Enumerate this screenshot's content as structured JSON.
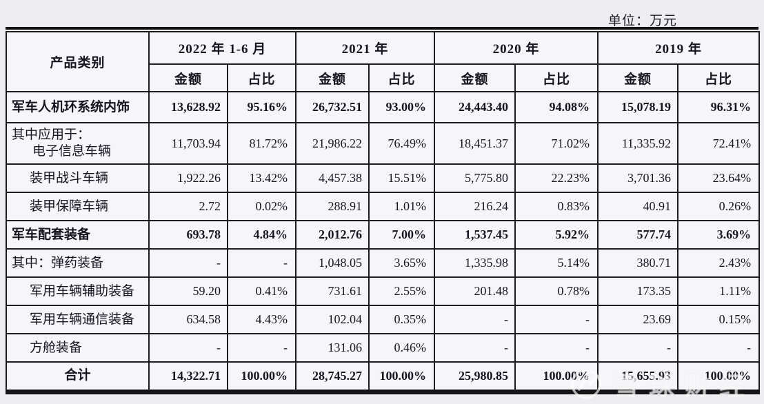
{
  "meta": {
    "unit_label": "单位：万元"
  },
  "table": {
    "category_header": "产品类别",
    "year_groups": [
      "2022 年 1-6 月",
      "2021 年",
      "2020 年",
      "2019 年"
    ],
    "amount_header": "金额",
    "ratio_header": "占比",
    "rows": [
      {
        "label": "军车人机环系统内饰",
        "bold": true,
        "indent": 0,
        "style": "main",
        "values": [
          "13,628.92",
          "95.16%",
          "26,732.51",
          "93.00%",
          "24,443.40",
          "94.08%",
          "15,078.19",
          "96.31%"
        ]
      },
      {
        "label": "其中应用于：",
        "label2": "电子信息车辆",
        "bold": false,
        "indent": 0,
        "style": "tall",
        "values": [
          "11,703.94",
          "81.72%",
          "21,986.22",
          "76.49%",
          "18,451.37",
          "71.02%",
          "11,335.92",
          "72.41%"
        ]
      },
      {
        "label": "装甲战斗车辆",
        "bold": false,
        "indent": 1,
        "style": "",
        "values": [
          "1,922.26",
          "13.42%",
          "4,457.38",
          "15.51%",
          "5,775.80",
          "22.23%",
          "3,701.36",
          "23.64%"
        ]
      },
      {
        "label": "装甲保障车辆",
        "bold": false,
        "indent": 1,
        "style": "",
        "values": [
          "2.72",
          "0.02%",
          "288.91",
          "1.01%",
          "216.24",
          "0.83%",
          "40.91",
          "0.26%"
        ]
      },
      {
        "label": "军车配套装备",
        "bold": true,
        "indent": 0,
        "style": "",
        "values": [
          "693.78",
          "4.84%",
          "2,012.76",
          "7.00%",
          "1,537.45",
          "5.92%",
          "577.74",
          "3.69%"
        ]
      },
      {
        "label": "其中：弹药装备",
        "bold": false,
        "indent": 0,
        "style": "",
        "values": [
          "-",
          "-",
          "1,048.05",
          "3.65%",
          "1,335.98",
          "5.14%",
          "380.71",
          "2.43%"
        ]
      },
      {
        "label": "军用车辆辅助装备",
        "bold": false,
        "indent": 1,
        "style": "",
        "values": [
          "59.20",
          "0.41%",
          "731.61",
          "2.55%",
          "201.48",
          "0.78%",
          "173.35",
          "1.11%"
        ]
      },
      {
        "label": "军用车辆通信装备",
        "bold": false,
        "indent": 1,
        "style": "",
        "values": [
          "634.58",
          "4.43%",
          "102.04",
          "0.35%",
          "-",
          "-",
          "23.69",
          "0.15%"
        ]
      },
      {
        "label": "方舱装备",
        "bold": false,
        "indent": 1,
        "style": "",
        "values": [
          "-",
          "-",
          "131.06",
          "0.46%",
          "-",
          "-",
          "-",
          "-"
        ]
      },
      {
        "label": "合计",
        "bold": true,
        "indent": 0,
        "style": "total",
        "values": [
          "14,322.71",
          "100.00%",
          "28,745.27",
          "100.00%",
          "25,980.85",
          "100.00%",
          "15,655.93",
          "100.00%"
        ]
      }
    ]
  },
  "watermark": {
    "text": "雪球财经"
  }
}
